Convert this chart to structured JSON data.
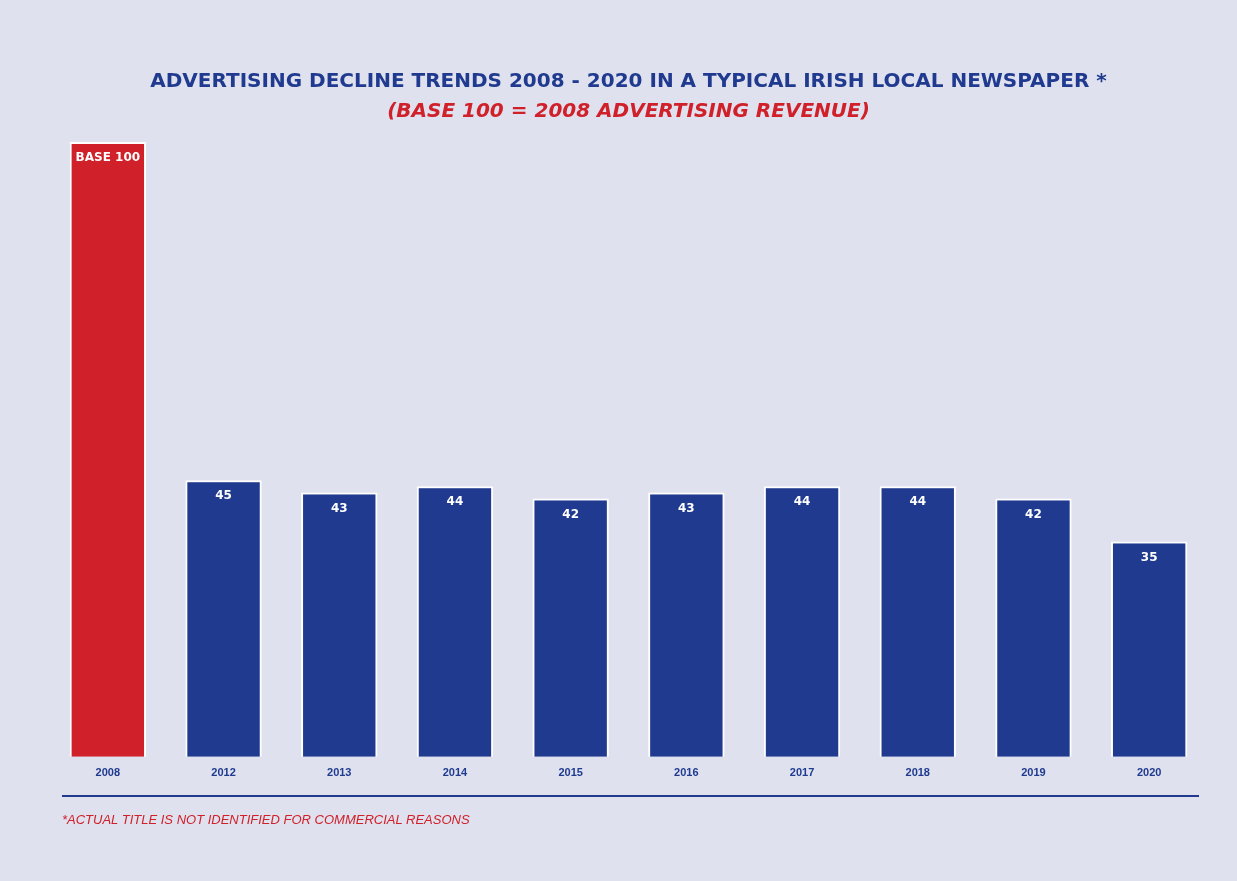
{
  "chart_data": {
    "type": "bar",
    "title": "ADVERTISING DECLINE TRENDS 2008 - 2020 IN A TYPICAL IRISH LOCAL NEWSPAPER *",
    "subtitle": "(BASE 100 = 2008 ADVERTISING REVENUE)",
    "categories": [
      "2008",
      "2012",
      "2013",
      "2014",
      "2015",
      "2016",
      "2017",
      "2018",
      "2019",
      "2020"
    ],
    "values": [
      100,
      45,
      43,
      44,
      42,
      43,
      44,
      44,
      42,
      35
    ],
    "colors": [
      "#d0202a",
      "#1f3a8f",
      "#1f3a8f",
      "#1f3a8f",
      "#1f3a8f",
      "#1f3a8f",
      "#1f3a8f",
      "#1f3a8f",
      "#1f3a8f",
      "#1f3a8f"
    ],
    "value_labels": [
      "BASE 100",
      "45",
      "43",
      "44",
      "42",
      "43",
      "44",
      "44",
      "42",
      "35"
    ],
    "tick_labels": "x",
    "annotations": [
      "*ACTUAL TITLE IS NOT IDENTIFIED FOR COMMERCIAL REASONS"
    ]
  }
}
